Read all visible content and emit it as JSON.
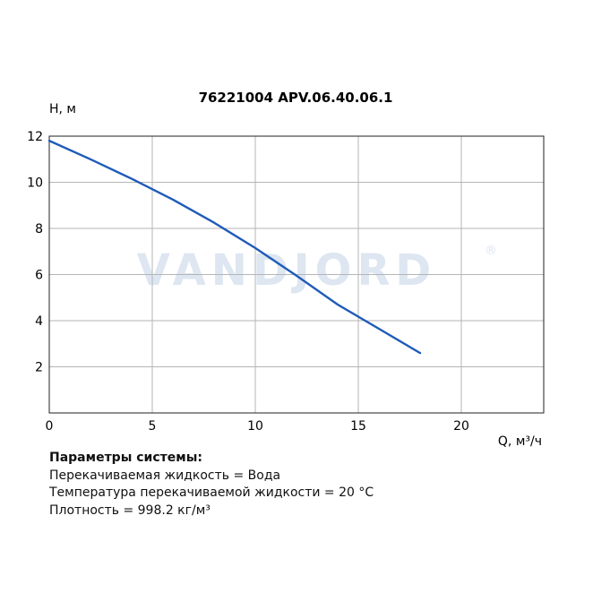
{
  "watermark": {
    "text": "VANDJORD",
    "reg": "®"
  },
  "chart_data": {
    "type": "line",
    "title": "76221004 APV.06.40.06.1",
    "xlabel": "Q, м³/ч",
    "ylabel": "H, м",
    "xlim": [
      0,
      24
    ],
    "ylim": [
      0,
      12
    ],
    "xticks": [
      0,
      5,
      10,
      15,
      20
    ],
    "yticks": [
      2,
      4,
      6,
      8,
      10,
      12
    ],
    "grid": true,
    "series": [
      {
        "color": "#1f5bb8",
        "x": [
          0,
          2,
          4,
          6,
          8,
          10,
          12,
          14,
          16,
          18
        ],
        "y": [
          11.8,
          11.0,
          10.15,
          9.25,
          8.25,
          7.15,
          5.95,
          4.7,
          3.65,
          2.6
        ]
      }
    ]
  },
  "params": {
    "heading": "Параметры системы:",
    "lines": [
      "Перекачиваемая жидкость = Вода",
      "Температура перекачиваемой жидкости = 20 °С",
      "Плотность = 998.2 кг/м³"
    ]
  }
}
